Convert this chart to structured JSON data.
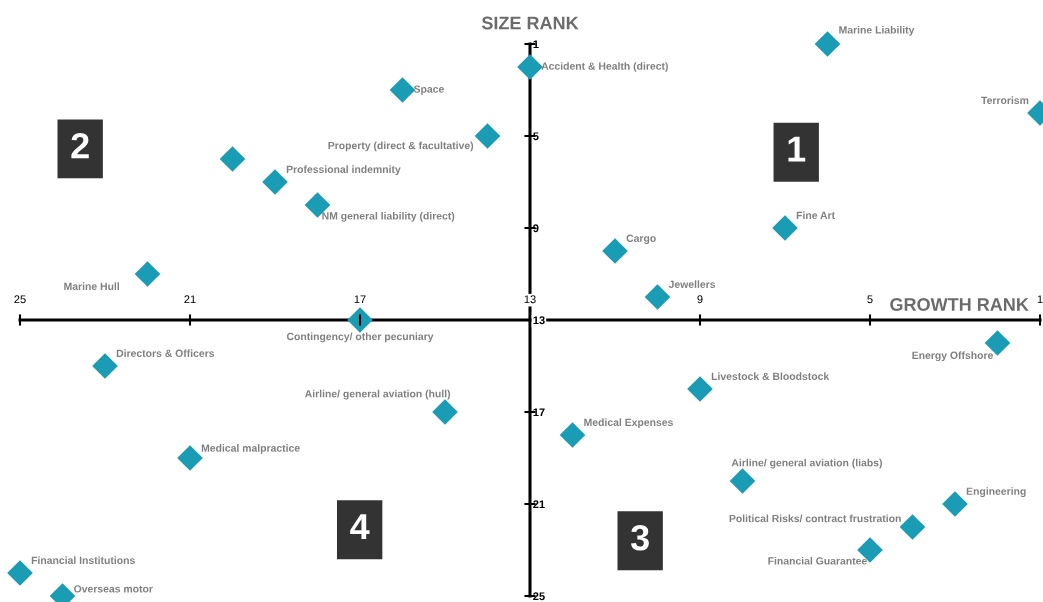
{
  "chart_data": {
    "type": "scatter",
    "title": "SIZE RANK",
    "xlabel": "GROWTH RANK",
    "xlim": [
      25,
      1
    ],
    "ylim": [
      25,
      1
    ],
    "xticks": [
      25,
      21,
      17,
      13,
      9,
      5,
      1
    ],
    "yticks": [
      1,
      5,
      9,
      13,
      17,
      21,
      25
    ],
    "marker": "diamond",
    "grid": false,
    "legend": false,
    "series": [
      {
        "color": "#1a9cb5",
        "x": [
          6,
          13,
          1,
          16,
          14,
          20,
          19,
          18,
          22,
          11,
          7,
          10,
          17,
          23,
          2,
          9,
          15,
          12,
          21,
          8,
          3,
          4,
          5,
          25,
          24
        ],
        "values": [
          1,
          2,
          4,
          3,
          5,
          6,
          7,
          8,
          11,
          10,
          9,
          12,
          13,
          15,
          14,
          16,
          17,
          18,
          19,
          20,
          21,
          22,
          23,
          24,
          25
        ]
      }
    ],
    "annotations": [
      "1",
      "2",
      "3",
      "4",
      {
        "text": "Marine Liability",
        "x": 6,
        "y": 1
      },
      {
        "text": "Accident & Health (direct)",
        "x": 13,
        "y": 2
      },
      {
        "text": "Terrorism",
        "x": 1,
        "y": 4
      },
      {
        "text": "Space",
        "x": 16,
        "y": 3
      },
      {
        "text": "Property (direct & facultative)",
        "x": 14,
        "y": 5
      },
      {
        "text": "Professional indemnity",
        "x": 19,
        "y": 7
      },
      {
        "text": "NM general liability (direct)",
        "x": 18,
        "y": 8
      },
      {
        "text": "Marine Hull",
        "x": 22,
        "y": 11
      },
      {
        "text": "Cargo",
        "x": 11,
        "y": 10
      },
      {
        "text": "Fine Art",
        "x": 7,
        "y": 9
      },
      {
        "text": "Jewellers",
        "x": 10,
        "y": 12
      },
      {
        "text": "Contingency/ other pecuniary",
        "x": 17,
        "y": 13
      },
      {
        "text": "Directors & Officers",
        "x": 23,
        "y": 15
      },
      {
        "text": "Energy Offshore",
        "x": 2,
        "y": 14
      },
      {
        "text": "Livestock & Bloodstock",
        "x": 9,
        "y": 16
      },
      {
        "text": "Airline/ general aviation (hull)",
        "x": 15,
        "y": 17
      },
      {
        "text": "Medical Expenses",
        "x": 12,
        "y": 18
      },
      {
        "text": "Medical malpractice",
        "x": 21,
        "y": 19
      },
      {
        "text": "Airline/ general aviation (liabs)",
        "x": 8,
        "y": 20
      },
      {
        "text": "Engineering",
        "x": 3,
        "y": 21
      },
      {
        "text": "Political Risks/ contract frustration",
        "x": 4,
        "y": 22
      },
      {
        "text": "Financial Guarantee",
        "x": 5,
        "y": 23
      },
      {
        "text": "Financial Institutions",
        "x": 25,
        "y": 24
      },
      {
        "text": "Overseas motor",
        "x": 24,
        "y": 25
      }
    ]
  }
}
